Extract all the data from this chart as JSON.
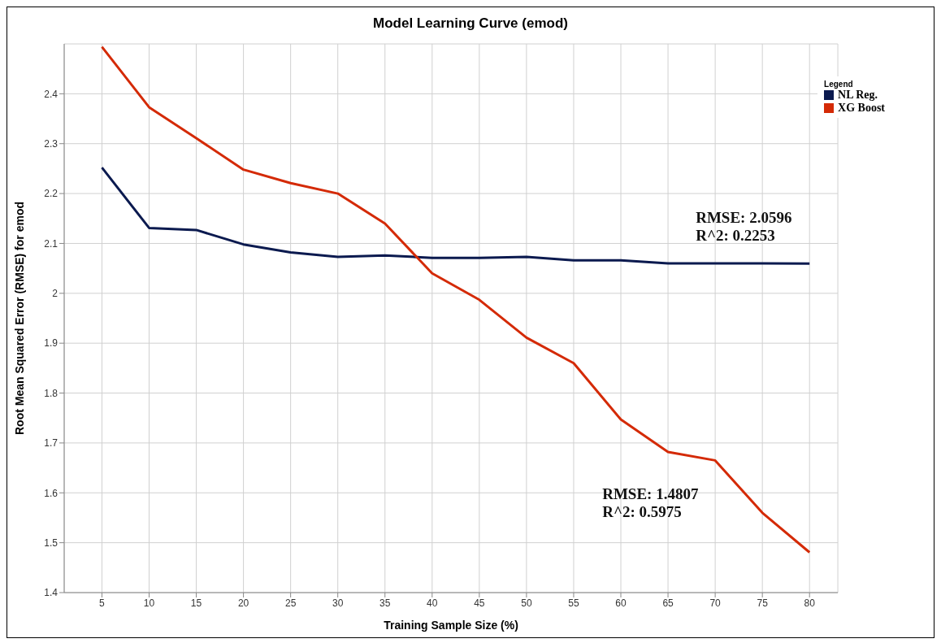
{
  "chart_data": {
    "type": "line",
    "title": "Model Learning Curve (emod)",
    "xlabel": "Training Sample Size (%)",
    "ylabel": "Root Mean Squared Error (RMSE) for emod",
    "legend_title": "Legend",
    "x": [
      5,
      10,
      15,
      20,
      25,
      30,
      35,
      40,
      45,
      50,
      55,
      60,
      65,
      70,
      75,
      80
    ],
    "series": [
      {
        "name": "NL Reg.",
        "color": "#0b1a4f",
        "values": [
          2.252,
          2.131,
          2.127,
          2.098,
          2.082,
          2.073,
          2.076,
          2.071,
          2.071,
          2.073,
          2.066,
          2.066,
          2.06,
          2.06,
          2.06,
          2.0596
        ]
      },
      {
        "name": "XG Boost",
        "color": "#d42a06",
        "values": [
          2.494,
          2.373,
          2.311,
          2.248,
          2.221,
          2.2,
          2.14,
          2.04,
          1.987,
          1.911,
          1.86,
          1.747,
          1.682,
          1.665,
          1.56,
          1.4807
        ]
      }
    ],
    "xlim": [
      1,
      83
    ],
    "xticks": [
      5,
      10,
      15,
      20,
      25,
      30,
      35,
      40,
      45,
      50,
      55,
      60,
      65,
      70,
      75,
      80
    ],
    "ylim": [
      1.4,
      2.5
    ],
    "yticks": [
      1.4,
      1.5,
      1.6,
      1.7,
      1.8,
      1.9,
      2.0,
      2.1,
      2.2,
      2.3,
      2.4
    ],
    "grid": true,
    "legend": "top right",
    "marker": "none",
    "line_style": "solid",
    "annotations": [
      "RMSE: 2.0596\nR^2: 0.2253",
      "RMSE: 1.4807\nR^2: 0.5975"
    ]
  }
}
